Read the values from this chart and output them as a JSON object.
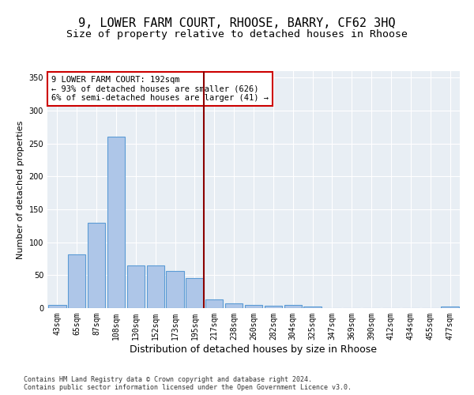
{
  "title": "9, LOWER FARM COURT, RHOOSE, BARRY, CF62 3HQ",
  "subtitle": "Size of property relative to detached houses in Rhoose",
  "xlabel": "Distribution of detached houses by size in Rhoose",
  "ylabel": "Number of detached properties",
  "bar_labels": [
    "43sqm",
    "65sqm",
    "87sqm",
    "108sqm",
    "130sqm",
    "152sqm",
    "173sqm",
    "195sqm",
    "217sqm",
    "238sqm",
    "260sqm",
    "282sqm",
    "304sqm",
    "325sqm",
    "347sqm",
    "369sqm",
    "390sqm",
    "412sqm",
    "434sqm",
    "455sqm",
    "477sqm"
  ],
  "bar_values": [
    5,
    82,
    130,
    261,
    65,
    65,
    56,
    46,
    13,
    7,
    5,
    4,
    5,
    2,
    0,
    0,
    0,
    0,
    0,
    0,
    3
  ],
  "bar_color": "#aec6e8",
  "bar_edge_color": "#5b9bd5",
  "vline_color": "#8b0000",
  "annotation_text": "9 LOWER FARM COURT: 192sqm\n← 93% of detached houses are smaller (626)\n6% of semi-detached houses are larger (41) →",
  "annotation_box_color": "#ffffff",
  "annotation_box_edge": "#cc0000",
  "ylim": [
    0,
    360
  ],
  "yticks": [
    0,
    50,
    100,
    150,
    200,
    250,
    300,
    350
  ],
  "background_color": "#e8eef4",
  "footnote": "Contains HM Land Registry data © Crown copyright and database right 2024.\nContains public sector information licensed under the Open Government Licence v3.0.",
  "title_fontsize": 11,
  "subtitle_fontsize": 9.5,
  "xlabel_fontsize": 9,
  "ylabel_fontsize": 8,
  "tick_fontsize": 7,
  "annot_fontsize": 7.5
}
